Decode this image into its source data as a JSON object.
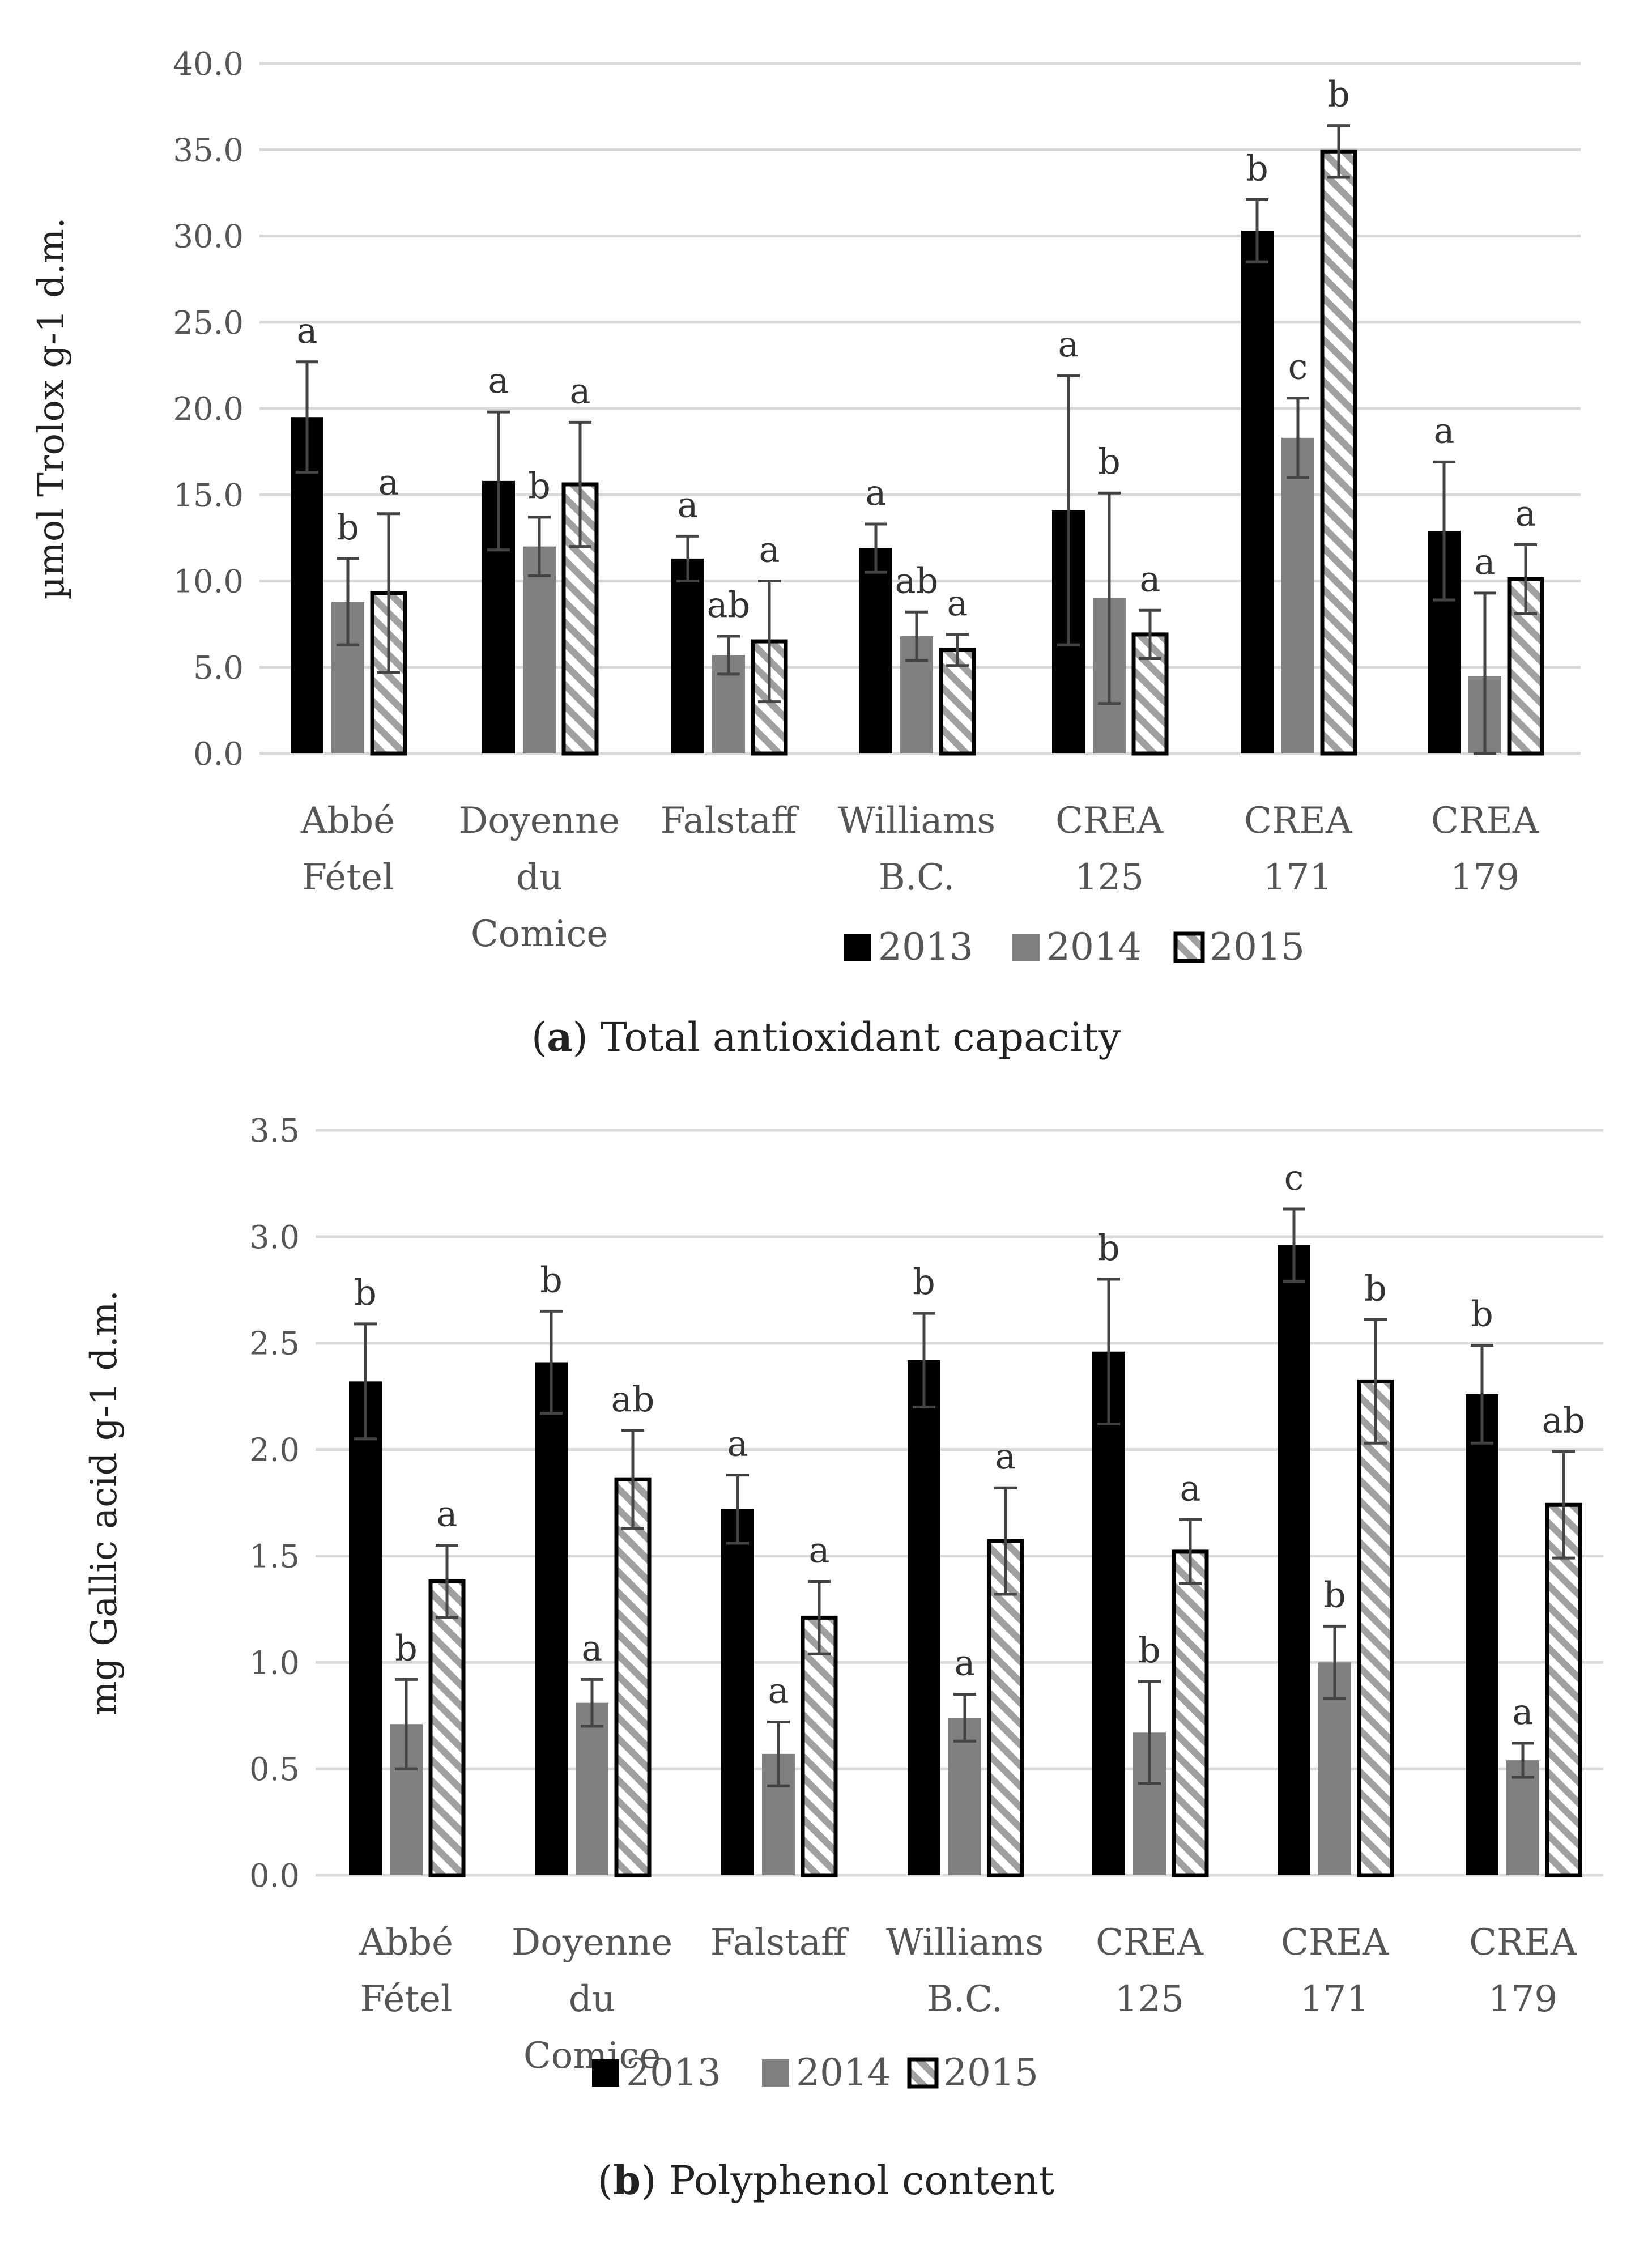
{
  "legend": [
    "2013",
    "2014",
    "2015"
  ],
  "colors": {
    "2013": "#000000",
    "2014": "#808080",
    "2015_stripe": "#a0a0a0",
    "2015_border": "#000000",
    "grid": "#d9d9d9",
    "error": "#444444"
  },
  "chart_data": [
    {
      "type": "bar",
      "panel": "a",
      "caption_label": "a",
      "caption_text": "Total antioxidant capacity",
      "ylabel": "µmol Trolox g-1 d.m.",
      "ylim": [
        0,
        40
      ],
      "ytick_labels": [
        "0.0",
        "5.0",
        "10.0",
        "15.0",
        "20.0",
        "25.0",
        "30.0",
        "35.0",
        "40.0"
      ],
      "categories": [
        [
          "Abbé",
          "Fétel"
        ],
        [
          "Doyenne",
          "du",
          "Comice"
        ],
        [
          "Falstaff"
        ],
        [
          "Williams",
          "B.C."
        ],
        [
          "CREA",
          "125"
        ],
        [
          "CREA",
          "171"
        ],
        [
          "CREA",
          "179"
        ]
      ],
      "series": [
        {
          "name": "2013",
          "values": [
            19.5,
            15.8,
            11.3,
            11.9,
            14.1,
            30.3,
            12.9
          ],
          "errors": [
            3.2,
            4.0,
            1.3,
            1.4,
            7.8,
            1.8,
            4.0
          ],
          "letters": [
            "a",
            "a",
            "a",
            "a",
            "a",
            "b",
            "a"
          ]
        },
        {
          "name": "2014",
          "values": [
            8.8,
            12.0,
            5.7,
            6.8,
            9.0,
            18.3,
            4.5
          ],
          "errors": [
            2.5,
            1.7,
            1.1,
            1.4,
            6.1,
            2.3,
            4.8
          ],
          "letters": [
            "b",
            "b",
            "ab",
            "ab",
            "b",
            "c",
            "a"
          ]
        },
        {
          "name": "2015",
          "values": [
            9.3,
            15.6,
            6.5,
            6.0,
            6.9,
            34.9,
            10.1
          ],
          "errors": [
            4.6,
            3.6,
            3.5,
            0.9,
            1.4,
            1.5,
            2.0
          ],
          "letters": [
            "a",
            "a",
            "a",
            "a",
            "a",
            "b",
            "a"
          ]
        }
      ]
    },
    {
      "type": "bar",
      "panel": "b",
      "caption_label": "b",
      "caption_text": "Polyphenol content",
      "ylabel": "mg Gallic acid g-1 d.m.",
      "ylim": [
        0,
        3.5
      ],
      "ytick_labels": [
        "0.0",
        "0.5",
        "1.0",
        "1.5",
        "2.0",
        "2.5",
        "3.0",
        "3.5"
      ],
      "categories": [
        [
          "Abbé",
          "Fétel"
        ],
        [
          "Doyenne",
          "du",
          "Comice"
        ],
        [
          "Falstaff"
        ],
        [
          "Williams",
          "B.C."
        ],
        [
          "CREA",
          "125"
        ],
        [
          "CREA",
          "171"
        ],
        [
          "CREA",
          "179"
        ]
      ],
      "series": [
        {
          "name": "2013",
          "values": [
            2.32,
            2.41,
            1.72,
            2.42,
            2.46,
            2.96,
            2.26
          ],
          "errors": [
            0.27,
            0.24,
            0.16,
            0.22,
            0.34,
            0.17,
            0.23
          ],
          "letters": [
            "b",
            "b",
            "a",
            "b",
            "b",
            "c",
            "b"
          ]
        },
        {
          "name": "2014",
          "values": [
            0.71,
            0.81,
            0.57,
            0.74,
            0.67,
            1.0,
            0.54
          ],
          "errors": [
            0.21,
            0.11,
            0.15,
            0.11,
            0.24,
            0.17,
            0.08
          ],
          "letters": [
            "b",
            "a",
            "a",
            "a",
            "b",
            "b",
            "a"
          ]
        },
        {
          "name": "2015",
          "values": [
            1.38,
            1.86,
            1.21,
            1.57,
            1.52,
            2.32,
            1.74
          ],
          "errors": [
            0.17,
            0.23,
            0.17,
            0.25,
            0.15,
            0.29,
            0.25
          ],
          "letters": [
            "a",
            "ab",
            "a",
            "a",
            "a",
            "b",
            "ab"
          ]
        }
      ]
    }
  ]
}
